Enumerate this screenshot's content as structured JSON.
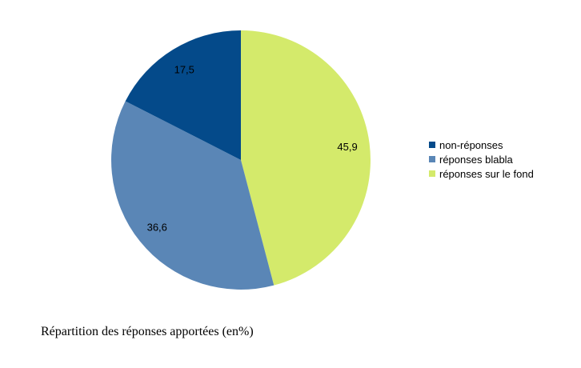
{
  "caption": "Répartition des réponses apportées (en%)",
  "chart_data": {
    "type": "pie",
    "title": "",
    "start_angle": "12 o'clock, clockwise",
    "legend_position": "right",
    "slices": [
      {
        "label": "réponses sur le fond",
        "value": 45.9,
        "display": "45,9",
        "color": "#d4ea6b"
      },
      {
        "label": "réponses blabla",
        "value": 36.6,
        "display": "36,6",
        "color": "#5a86b6"
      },
      {
        "label": "non-réponses",
        "value": 17.5,
        "display": "17,5",
        "color": "#044a8a"
      }
    ],
    "legend_order": [
      "non-réponses",
      "réponses blabla",
      "réponses sur le fond"
    ]
  }
}
